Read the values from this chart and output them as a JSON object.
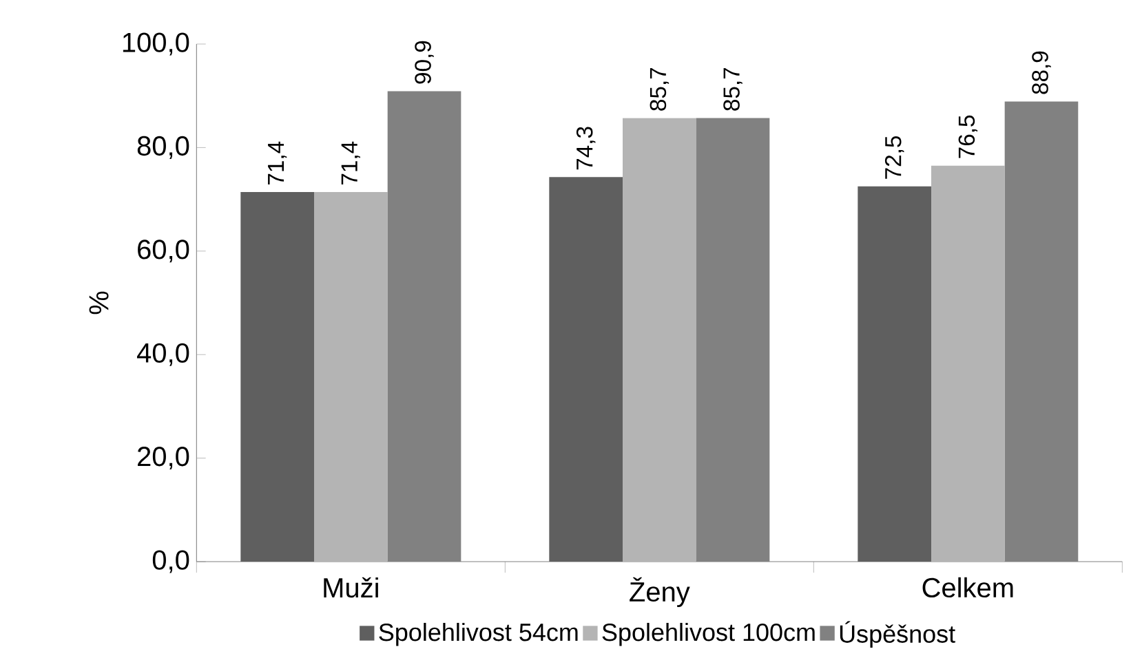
{
  "chart_data": {
    "type": "bar",
    "ylabel": "%",
    "categories": [
      "Muži",
      "Ženy",
      "Celkem"
    ],
    "series": [
      {
        "name": "Spolehlivost 54cm",
        "color": "#5f5f5f",
        "values": [
          71.4,
          74.3,
          72.5
        ],
        "value_labels": [
          "71,4",
          "74,3",
          "72,5"
        ]
      },
      {
        "name": "Spolehlivost 100cm",
        "color": "#b4b4b4",
        "values": [
          71.4,
          85.7,
          76.5
        ],
        "value_labels": [
          "71,4",
          "85,7",
          "76,5"
        ]
      },
      {
        "name": "Úspěšnost",
        "color": "#818181",
        "values": [
          90.9,
          85.7,
          88.9
        ],
        "value_labels": [
          "90,9",
          "85,7",
          "88,9"
        ]
      }
    ],
    "ylim": [
      0,
      100
    ],
    "yticks": [
      {
        "value": 0,
        "label": "0,0"
      },
      {
        "value": 20,
        "label": "20,0"
      },
      {
        "value": 40,
        "label": "40,0"
      },
      {
        "value": 60,
        "label": "60,0"
      },
      {
        "value": 80,
        "label": "80,0"
      },
      {
        "value": 100,
        "label": "100,0"
      }
    ],
    "legend": "bottom"
  }
}
